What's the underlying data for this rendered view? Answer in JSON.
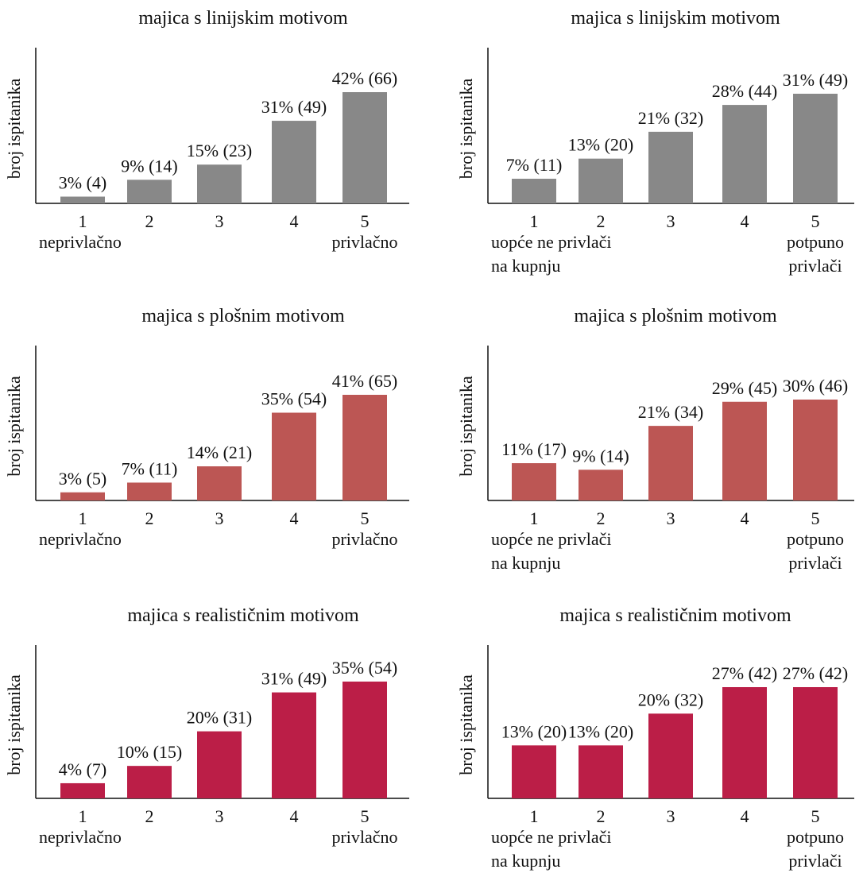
{
  "chart_data": [
    {
      "type": "bar",
      "title": "majica s linijskim motivom",
      "ylabel": "broj ispitanika",
      "categories": [
        "1",
        "2",
        "3",
        "4",
        "5"
      ],
      "scale_low_label": [
        "neprivlačno"
      ],
      "scale_high_label": [
        "privlačno"
      ],
      "values": [
        4,
        14,
        23,
        49,
        66
      ],
      "percent": [
        3,
        9,
        15,
        31,
        42
      ],
      "data_labels": [
        "3% (4)",
        "9% (14)",
        "15% (23)",
        "31% (49)",
        "42% (66)"
      ],
      "color": "#888888",
      "ylim": [
        0,
        66
      ]
    },
    {
      "type": "bar",
      "title": "majica s linijskim motivom",
      "ylabel": "broj ispitanika",
      "categories": [
        "1",
        "2",
        "3",
        "4",
        "5"
      ],
      "scale_low_label": [
        "uopće ne privlači",
        "na kupnju"
      ],
      "scale_high_label": [
        "potpuno",
        "privlači"
      ],
      "values": [
        11,
        20,
        32,
        44,
        49
      ],
      "percent": [
        7,
        13,
        21,
        28,
        31
      ],
      "data_labels": [
        "7% (11)",
        "13% (20)",
        "21% (32)",
        "28% (44)",
        "31% (49)"
      ],
      "color": "#888888",
      "ylim": [
        0,
        49
      ]
    },
    {
      "type": "bar",
      "title": "majica s plošnim motivom",
      "ylabel": "broj ispitanika",
      "categories": [
        "1",
        "2",
        "3",
        "4",
        "5"
      ],
      "scale_low_label": [
        "neprivlačno"
      ],
      "scale_high_label": [
        "privlačno"
      ],
      "values": [
        5,
        11,
        21,
        54,
        65
      ],
      "percent": [
        3,
        7,
        14,
        35,
        41
      ],
      "data_labels": [
        "3% (5)",
        "7% (11)",
        "14% (21)",
        "35% (54)",
        "41% (65)"
      ],
      "color": "#bc5654",
      "ylim": [
        0,
        65
      ]
    },
    {
      "type": "bar",
      "title": "majica s plošnim motivom",
      "ylabel": "broj ispitanika",
      "categories": [
        "1",
        "2",
        "3",
        "4",
        "5"
      ],
      "scale_low_label": [
        "uopće ne privlači",
        "na kupnju"
      ],
      "scale_high_label": [
        "potpuno",
        "privlači"
      ],
      "values": [
        17,
        14,
        34,
        45,
        46
      ],
      "percent": [
        11,
        9,
        21,
        29,
        30
      ],
      "data_labels": [
        "11% (17)",
        "9% (14)",
        "21% (34)",
        "29% (45)",
        "30% (46)"
      ],
      "color": "#bc5654",
      "ylim": [
        0,
        46
      ]
    },
    {
      "type": "bar",
      "title": "majica s realističnim motivom",
      "ylabel": "broj ispitanika",
      "categories": [
        "1",
        "2",
        "3",
        "4",
        "5"
      ],
      "scale_low_label": [
        "neprivlačno"
      ],
      "scale_high_label": [
        "privlačno"
      ],
      "values": [
        7,
        15,
        31,
        49,
        54
      ],
      "percent": [
        4,
        10,
        20,
        31,
        35
      ],
      "data_labels": [
        "4% (7)",
        "10% (15)",
        "20% (31)",
        "31% (49)",
        "35% (54)"
      ],
      "color": "#bb1e47",
      "ylim": [
        0,
        54
      ]
    },
    {
      "type": "bar",
      "title": "majica s realističnim motivom",
      "ylabel": "broj ispitanika",
      "categories": [
        "1",
        "2",
        "3",
        "4",
        "5"
      ],
      "scale_low_label": [
        "uopće ne privlači",
        "na kupnju"
      ],
      "scale_high_label": [
        "potpuno",
        "privlači"
      ],
      "values": [
        20,
        20,
        32,
        42,
        42
      ],
      "percent": [
        13,
        13,
        20,
        27,
        27
      ],
      "data_labels": [
        "13% (20)",
        "13% (20)",
        "20% (32)",
        "27% (42)",
        "27% (42)"
      ],
      "color": "#bb1e47",
      "ylim": [
        0,
        42
      ]
    }
  ]
}
